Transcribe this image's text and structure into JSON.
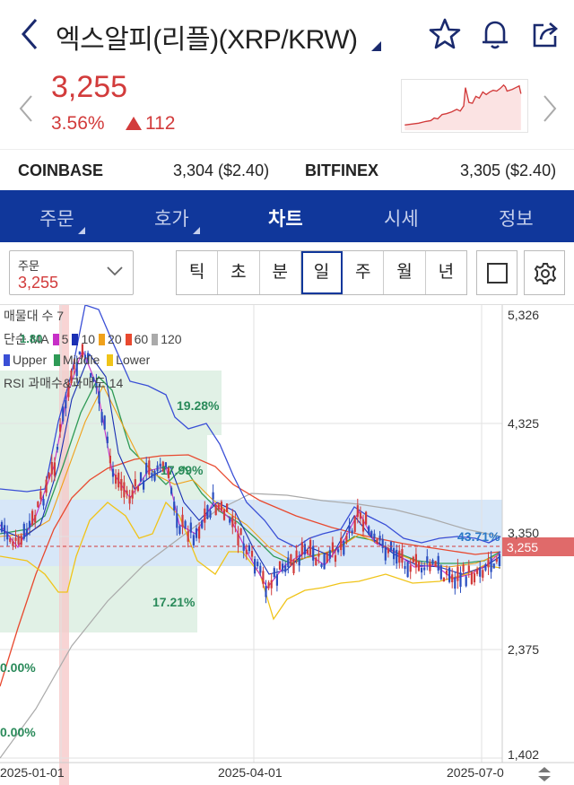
{
  "header": {
    "title": "엑스알피(리플)(XRP/KRW)",
    "icons": [
      "back-icon",
      "star-icon",
      "bell-icon",
      "share-icon"
    ]
  },
  "quote": {
    "price": "3,255",
    "change_pct": "3.56%",
    "change_abs": "112",
    "color_up": "#d23b3b"
  },
  "exchanges": [
    {
      "name": "COINBASE",
      "value": "3,304 ($2.40)"
    },
    {
      "name": "BITFINEX",
      "value": "3,305 ($2.40)"
    }
  ],
  "tabs": [
    {
      "label": "주문",
      "active": false
    },
    {
      "label": "호가",
      "active": false
    },
    {
      "label": "차트",
      "active": true
    },
    {
      "label": "시세",
      "active": false
    },
    {
      "label": "정보",
      "active": false
    }
  ],
  "order_select": {
    "label": "주문",
    "value": "3,255"
  },
  "periods": [
    "틱",
    "초",
    "분",
    "일",
    "주",
    "월",
    "년"
  ],
  "selected_period": "일",
  "chart": {
    "legend": {
      "volume_profile": "매물대 수 7",
      "ma_prefix": "단순 MA",
      "ma_periods": [
        "5",
        "10",
        "20",
        "60",
        "120"
      ],
      "ma_colors": [
        "#c72fc7",
        "#1a2fb3",
        "#f0a11b",
        "#e8492f",
        "#aaaaaa"
      ],
      "overlap_value": "1.80",
      "bb_labels": [
        "Upper",
        "Middle",
        "Lower"
      ],
      "bb_colors": [
        "#3a4fd6",
        "#2f9a56",
        "#f0c419"
      ],
      "rsi": "RSI 과매수&과매도 14"
    },
    "y_labels": [
      "5,326",
      "4,325",
      "3,350",
      "2,375",
      "1,402"
    ],
    "x_labels": [
      "2025-01-01",
      "2025-04-01",
      "2025-07-0"
    ],
    "current_price_tag": "3,255",
    "volume_pct_labels": [
      "19.28%",
      "17.99%",
      "43.71%",
      "17.21%",
      "0.00%",
      "0.00%"
    ]
  },
  "chart_data": {
    "type": "line",
    "title": "",
    "x_labels": [
      "2025-01-01",
      "2025-04-01",
      "2025-07-0"
    ],
    "ylim": [
      1402,
      5326
    ],
    "y_ticks": [
      5326,
      4325,
      3350,
      2375,
      1402
    ],
    "last_price": 3255,
    "series": [
      {
        "name": "5",
        "color": "#c72fc7"
      },
      {
        "name": "10",
        "color": "#1a2fb3"
      },
      {
        "name": "20",
        "color": "#f0a11b"
      },
      {
        "name": "60",
        "color": "#e8492f"
      },
      {
        "name": "120",
        "color": "#aaaaaa"
      },
      {
        "name": "Upper",
        "color": "#3a4fd6"
      },
      {
        "name": "Middle",
        "color": "#2f9a56"
      },
      {
        "name": "Lower",
        "color": "#f0c419"
      }
    ],
    "volume_profile": [
      {
        "range": [
          4325,
          4700
        ],
        "pct": "19.28%"
      },
      {
        "range": [
          3750,
          4325
        ],
        "pct": "17.99%"
      },
      {
        "range": [
          3200,
          3750
        ],
        "pct": "43.71%"
      },
      {
        "range": [
          2750,
          3200
        ],
        "pct": "17.21%"
      },
      {
        "range": [
          2000,
          2750
        ],
        "pct": "0.00%"
      },
      {
        "range": [
          1402,
          2000
        ],
        "pct": "0.00%"
      }
    ]
  }
}
